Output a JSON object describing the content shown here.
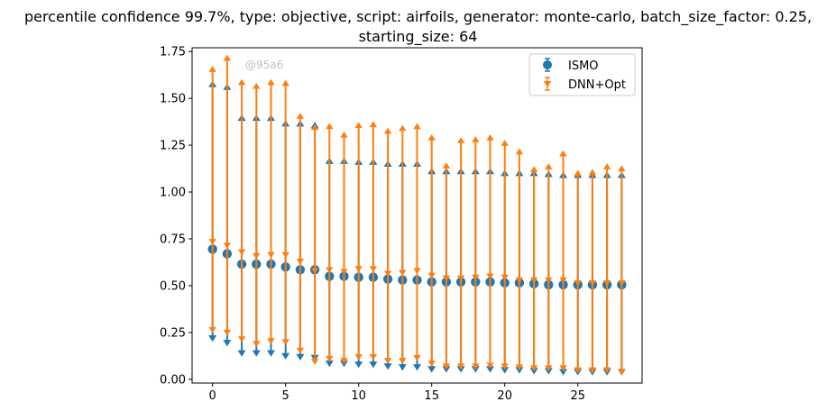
{
  "chart_data": {
    "type": "errorbar",
    "title_line1": "percentile confidence 99.7%, type: objective, script: airfoils, generator: monte-carlo, batch_size_factor: 0.25,",
    "title_line2": "starting_size: 64",
    "watermark": "@95a6",
    "xlim": [
      -1.4,
      29.4
    ],
    "ylim": [
      -0.02,
      1.77
    ],
    "xticks": [
      0,
      5,
      10,
      15,
      20,
      25
    ],
    "yticks": [
      0.0,
      0.25,
      0.5,
      0.75,
      1.0,
      1.25,
      1.5,
      1.75
    ],
    "ytick_labels": [
      "0.00",
      "0.25",
      "0.50",
      "0.75",
      "1.00",
      "1.25",
      "1.50",
      "1.75"
    ],
    "legend_position": "top-right",
    "x": [
      0,
      1,
      2,
      3,
      4,
      5,
      6,
      7,
      8,
      9,
      10,
      11,
      12,
      13,
      14,
      15,
      16,
      17,
      18,
      19,
      20,
      21,
      22,
      23,
      24,
      25,
      26,
      27,
      28
    ],
    "series": [
      {
        "name": "ISMO",
        "color": "#1f77b4",
        "marker": "circle",
        "mean": [
          0.695,
          0.67,
          0.615,
          0.615,
          0.615,
          0.6,
          0.585,
          0.585,
          0.55,
          0.55,
          0.545,
          0.545,
          0.535,
          0.53,
          0.53,
          0.52,
          0.52,
          0.52,
          0.52,
          0.52,
          0.515,
          0.515,
          0.51,
          0.505,
          0.505,
          0.505,
          0.505,
          0.505,
          0.505
        ],
        "upper": [
          1.575,
          1.56,
          1.395,
          1.395,
          1.395,
          1.365,
          1.365,
          1.355,
          1.165,
          1.165,
          1.16,
          1.16,
          1.15,
          1.15,
          1.15,
          1.11,
          1.11,
          1.11,
          1.11,
          1.11,
          1.1,
          1.1,
          1.1,
          1.095,
          1.09,
          1.09,
          1.09,
          1.09,
          1.09
        ],
        "lower": [
          0.22,
          0.195,
          0.14,
          0.14,
          0.14,
          0.125,
          0.12,
          0.115,
          0.085,
          0.085,
          0.08,
          0.08,
          0.07,
          0.065,
          0.065,
          0.055,
          0.055,
          0.055,
          0.055,
          0.055,
          0.05,
          0.05,
          0.045,
          0.045,
          0.04,
          0.04,
          0.04,
          0.04,
          0.04
        ]
      },
      {
        "name": "DNN+Opt",
        "color": "#ff7f0e",
        "marker": "triangle",
        "mean": [
          0.735,
          0.715,
          0.68,
          0.66,
          0.665,
          0.665,
          0.63,
          0.58,
          0.585,
          0.575,
          0.59,
          0.59,
          0.565,
          0.57,
          0.58,
          0.555,
          0.54,
          0.54,
          0.545,
          0.55,
          0.545,
          0.53,
          0.53,
          0.53,
          0.53,
          0.515,
          0.515,
          0.515,
          0.515
        ],
        "upper": [
          1.655,
          1.715,
          1.585,
          1.565,
          1.585,
          1.58,
          1.405,
          1.345,
          1.35,
          1.305,
          1.355,
          1.36,
          1.325,
          1.34,
          1.35,
          1.29,
          1.14,
          1.275,
          1.28,
          1.29,
          1.26,
          1.215,
          1.12,
          1.135,
          1.205,
          1.1,
          1.105,
          1.135,
          1.125
        ],
        "lower": [
          0.265,
          0.25,
          0.215,
          0.19,
          0.205,
          0.2,
          0.155,
          0.095,
          0.11,
          0.1,
          0.12,
          0.12,
          0.1,
          0.1,
          0.115,
          0.085,
          0.07,
          0.07,
          0.07,
          0.075,
          0.07,
          0.065,
          0.06,
          0.06,
          0.06,
          0.05,
          0.05,
          0.05,
          0.04
        ]
      }
    ]
  }
}
